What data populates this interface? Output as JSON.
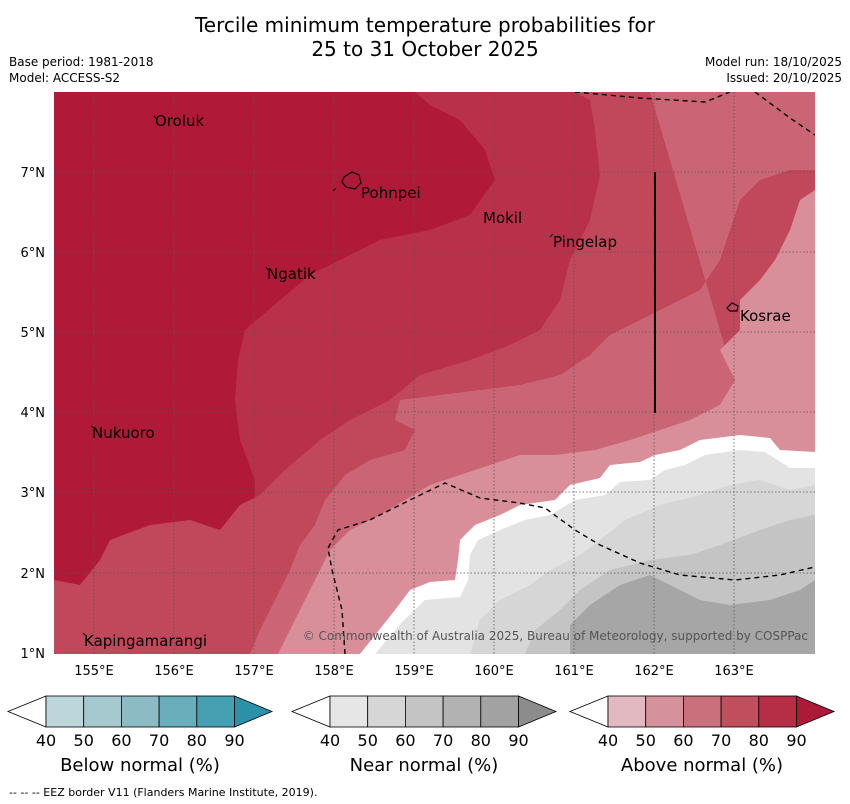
{
  "title_line1": "Tercile minimum temperature probabilities for",
  "title_line2": "25 to 31 October 2025",
  "base_period": "Base period: 1981-2018",
  "model": "Model: ACCESS-S2",
  "model_run": "Model run: 18/10/2025",
  "issued": "Issued: 20/10/2025",
  "copyright": "© Commonwealth of Australia 2025, Bureau of Meteorology, supported by COSPPac",
  "lon_labels": [
    "155°E",
    "156°E",
    "157°E",
    "158°E",
    "159°E",
    "160°E",
    "161°E",
    "162°E",
    "163°E"
  ],
  "lat_labels": [
    "7°N",
    "6°N",
    "5°N",
    "4°N",
    "3°N",
    "2°N",
    "1°N"
  ],
  "places": {
    "oroluk": "Oroluk",
    "pohnpei": "Pohnpei",
    "mokil": "Mokil",
    "pingelap": "Pingelap",
    "ngatik": "Ngatik",
    "kosrae": "Kosrae",
    "nukuoro": "Nukuoro",
    "kapingamarangi": "Kapingamarangi"
  },
  "colorbars": {
    "ticks": [
      "40",
      "50",
      "60",
      "70",
      "80",
      "90"
    ],
    "below": {
      "title": "Below normal (%)",
      "colors": [
        "#ffffff",
        "#bdd6dc",
        "#a5c9cf",
        "#8cbbc3",
        "#6aaebb",
        "#45a0b2",
        "#2a91a8"
      ]
    },
    "near": {
      "title": "Near normal (%)",
      "colors": [
        "#ffffff",
        "#e6e6e6",
        "#d6d6d6",
        "#c4c4c4",
        "#b2b2b2",
        "#a2a2a2",
        "#8c8c8c"
      ]
    },
    "above": {
      "title": "Above normal (%)",
      "colors": [
        "#ffffff",
        "#e2b9c0",
        "#d6929c",
        "#ca707c",
        "#c04e5c",
        "#b62e45",
        "#ac1a38"
      ]
    }
  },
  "footer": "--  --  -- EEZ border V11 (Flanders Marine Institute, 2019)."
}
